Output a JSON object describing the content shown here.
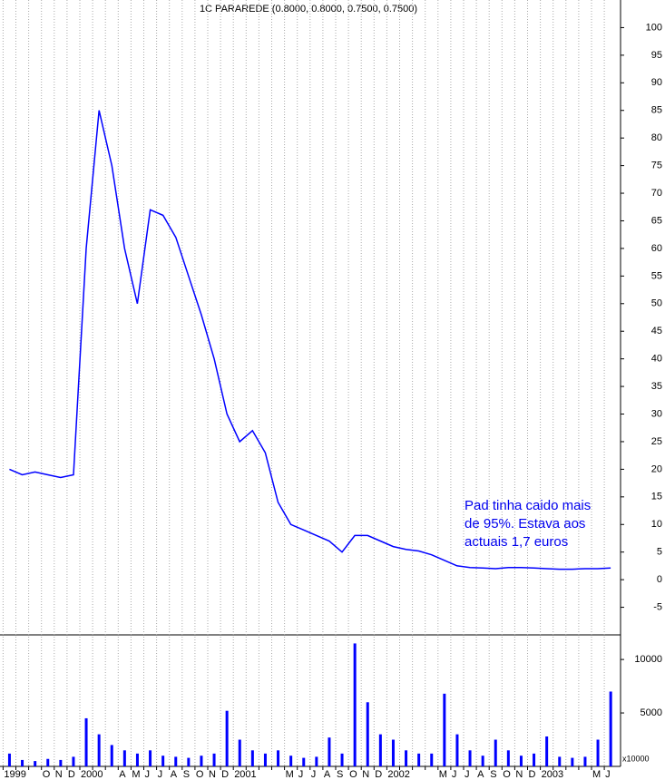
{
  "chart_data": [
    {
      "type": "line",
      "title": "1C PARAREDE (0.8000, 0.8000, 0.7500, 0.7500)",
      "annotation": [
        "Pad tinha caido mais",
        "de 95%. Estava aos",
        "actuais 1,7 euros"
      ],
      "categories": [
        "1999",
        null,
        null,
        "O",
        "N",
        "D",
        "2000",
        null,
        null,
        "A",
        "M",
        "J",
        "J",
        "A",
        "S",
        "O",
        "N",
        "D",
        "2001",
        null,
        null,
        null,
        "M",
        "J",
        "J",
        "A",
        "S",
        "O",
        "N",
        "D",
        "2002",
        null,
        null,
        null,
        "M",
        "J",
        "J",
        "A",
        "S",
        "O",
        "N",
        "D",
        "2003",
        null,
        null,
        null,
        "M",
        "J"
      ],
      "series": [
        {
          "name": "1C PARAREDE",
          "color": "#0000ff",
          "values": [
            20,
            19,
            19.5,
            19,
            18.5,
            19,
            60,
            85,
            75,
            60,
            50,
            67,
            66,
            62,
            55,
            48,
            40,
            30,
            25,
            27,
            23,
            14,
            10,
            9,
            8,
            7,
            5,
            8,
            8,
            7,
            6,
            5.5,
            5.2,
            4.5,
            3.5,
            2.5,
            2.2,
            2.1,
            2,
            2.2,
            2.2,
            2.1,
            2,
            1.9,
            1.9,
            2,
            2,
            2.1
          ]
        }
      ],
      "ylim": [
        -10,
        105
      ],
      "yticks": [
        100,
        95,
        90,
        85,
        80,
        75,
        70,
        65,
        60,
        55,
        50,
        45,
        40,
        35,
        30,
        25,
        20,
        15,
        10,
        5,
        0,
        -5
      ],
      "grid": true
    },
    {
      "type": "bar",
      "unit_label": "x10000",
      "color": "#0000ff",
      "values": [
        1200,
        600,
        500,
        700,
        600,
        900,
        4500,
        3000,
        2000,
        1500,
        1200,
        1500,
        1000,
        900,
        800,
        1000,
        1200,
        5200,
        2500,
        1500,
        1200,
        1500,
        1000,
        800,
        900,
        2700,
        1200,
        11500,
        6000,
        3000,
        2500,
        1500,
        1200,
        1200,
        6800,
        3000,
        1500,
        1000,
        2500,
        1500,
        1000,
        1200,
        2800,
        900,
        800,
        900,
        2500,
        7000
      ],
      "ylim": [
        0,
        12300
      ],
      "yticks": [
        5000,
        10000
      ]
    }
  ]
}
